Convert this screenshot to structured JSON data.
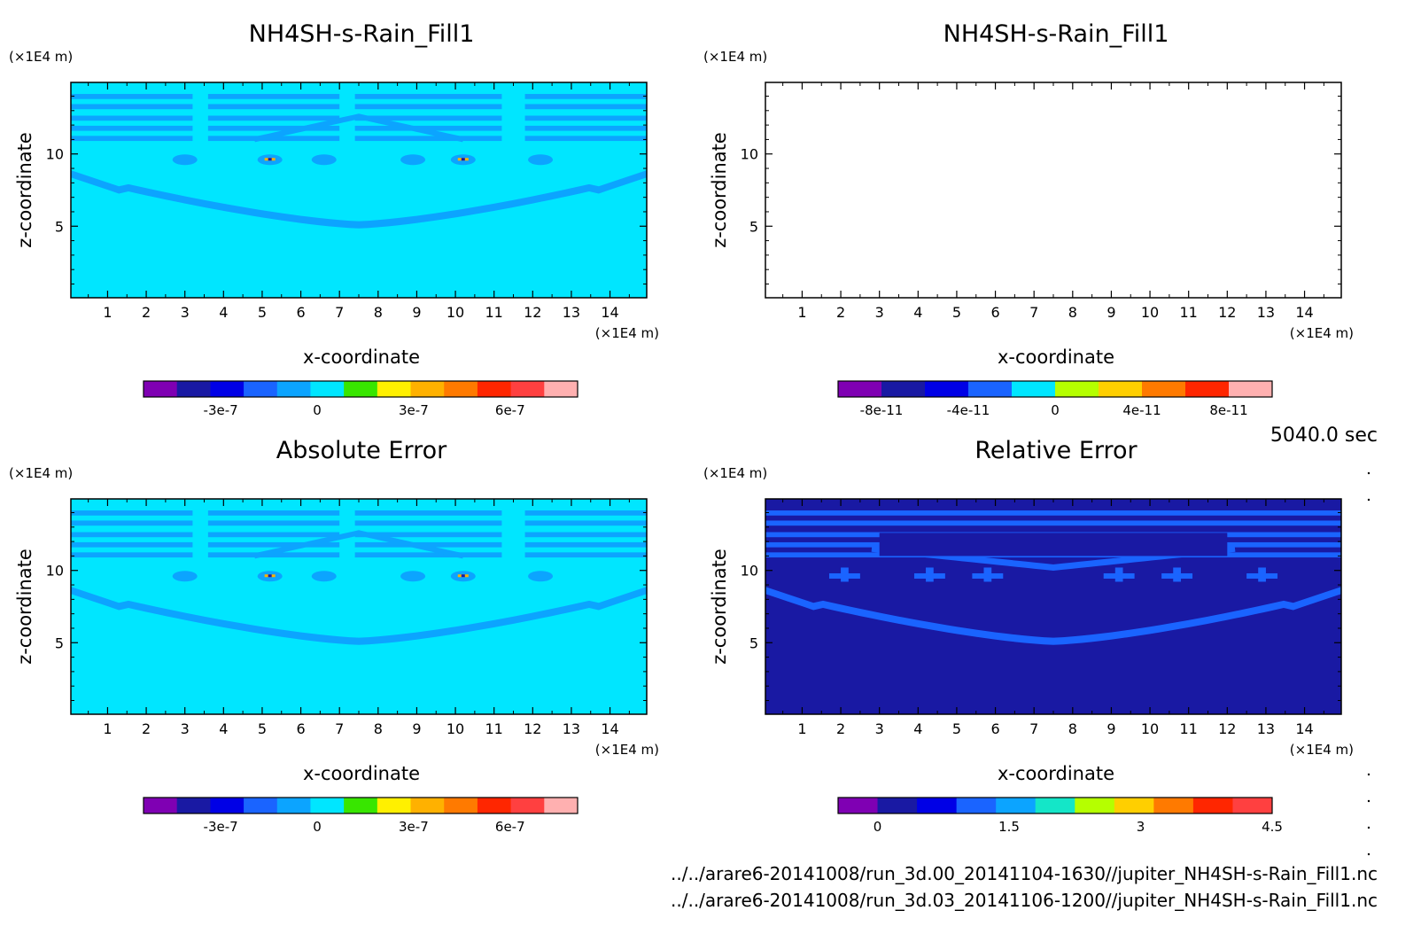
{
  "time_label": "5040.0 sec",
  "footer": {
    "file1": "../../arare6-20141008/run_3d.00_20141104-1630//jupiter_NH4SH-s-Rain_Fill1.nc",
    "file2": "../../arare6-20141008/run_3d.03_20141106-1200//jupiter_NH4SH-s-Rain_Fill1.nc"
  },
  "chart_data": [
    {
      "type": "heatmap",
      "title": "NH4SH-s-Rain_Fill1",
      "xlabel": "x-coordinate",
      "ylabel": "z-coordinate",
      "x_unit": "(×1E4 m)",
      "y_unit": "(×1E4 m)",
      "x_ticks": [
        1,
        2,
        3,
        4,
        5,
        6,
        7,
        8,
        9,
        10,
        11,
        12,
        13,
        14
      ],
      "y_ticks": [
        5,
        10
      ],
      "xlim": [
        0.05,
        14.95
      ],
      "ylim": [
        0.05,
        14.95
      ],
      "dominant_value": 0,
      "features": "banded structure near z=11-14, lens-shaped layer from z~7.5 at edges down to z~5 at x~7.5, small cells near x~5 and x~10 at z~9.5",
      "colorbar": {
        "tick_labels": [
          "-3e-7",
          "0",
          "3e-7",
          "6e-7"
        ],
        "tick_values": [
          -3e-07,
          0,
          3e-07,
          6e-07
        ],
        "range": [
          -5.4e-07,
          8.1e-07
        ],
        "colors": [
          "#7f00b3",
          "#1919a3",
          "#0000e6",
          "#1a64ff",
          "#0ca4ff",
          "#00e6ff",
          "#38e600",
          "#fff000",
          "#ffb100",
          "#ff7a00",
          "#ff2600",
          "#ff4040",
          "#ffb0b0"
        ]
      }
    },
    {
      "type": "heatmap",
      "title": "NH4SH-s-Rain_Fill1",
      "xlabel": "x-coordinate",
      "ylabel": "z-coordinate",
      "x_unit": "(×1E4 m)",
      "y_unit": "(×1E4 m)",
      "x_ticks": [
        1,
        2,
        3,
        4,
        5,
        6,
        7,
        8,
        9,
        10,
        11,
        12,
        13,
        14
      ],
      "y_ticks": [
        5,
        10
      ],
      "xlim": [
        0.05,
        14.95
      ],
      "ylim": [
        0.05,
        14.95
      ],
      "dominant_value": null,
      "features": "empty field (no shading)",
      "colorbar": {
        "tick_labels": [
          "-8e-11",
          "-4e-11",
          "0",
          "4e-11",
          "8e-11"
        ],
        "tick_values": [
          -8e-11,
          -4e-11,
          0,
          4e-11,
          8e-11
        ],
        "range": [
          -1e-10,
          1e-10
        ],
        "colors": [
          "#7f00b3",
          "#1919a3",
          "#0000e6",
          "#1a64ff",
          "#00e6ff",
          "#b5ff00",
          "#ffcf00",
          "#ff7a00",
          "#ff2600",
          "#ffb0b0"
        ]
      }
    },
    {
      "type": "heatmap",
      "title": "Absolute Error",
      "xlabel": "x-coordinate",
      "ylabel": "z-coordinate",
      "x_unit": "(×1E4 m)",
      "y_unit": "(×1E4 m)",
      "x_ticks": [
        1,
        2,
        3,
        4,
        5,
        6,
        7,
        8,
        9,
        10,
        11,
        12,
        13,
        14
      ],
      "y_ticks": [
        5,
        10
      ],
      "xlim": [
        0.05,
        14.95
      ],
      "ylim": [
        0.05,
        14.95
      ],
      "dominant_value": 0,
      "features": "identical pattern to the first panel",
      "colorbar": {
        "tick_labels": [
          "-3e-7",
          "0",
          "3e-7",
          "6e-7"
        ],
        "tick_values": [
          -3e-07,
          0,
          3e-07,
          6e-07
        ],
        "range": [
          -5.4e-07,
          8.1e-07
        ],
        "colors": [
          "#7f00b3",
          "#1919a3",
          "#0000e6",
          "#1a64ff",
          "#0ca4ff",
          "#00e6ff",
          "#38e600",
          "#fff000",
          "#ffb100",
          "#ff7a00",
          "#ff2600",
          "#ff4040",
          "#ffb0b0"
        ]
      }
    },
    {
      "type": "heatmap",
      "title": "Relative Error",
      "xlabel": "x-coordinate",
      "ylabel": "z-coordinate",
      "x_unit": "(×1E4 m)",
      "y_unit": "(×1E4 m)",
      "x_ticks": [
        1,
        2,
        3,
        4,
        5,
        6,
        7,
        8,
        9,
        10,
        11,
        12,
        13,
        14
      ],
      "y_ticks": [
        5,
        10
      ],
      "xlim": [
        0.05,
        14.95
      ],
      "ylim": [
        0.05,
        14.95
      ],
      "dominant_value": 0,
      "features": "banded values near z=11-14, lens-shaped layer from z~7.5 at edges down to z~5 at x~7.5",
      "colorbar": {
        "tick_labels": [
          "0",
          "1.5",
          "3",
          "4.5"
        ],
        "tick_values": [
          0,
          1.5,
          3,
          4.5
        ],
        "range": [
          -0.45,
          4.5
        ],
        "colors": [
          "#7f00b3",
          "#1919a3",
          "#0000e6",
          "#1a64ff",
          "#0ca4ff",
          "#14e6c8",
          "#b5ff00",
          "#ffcf00",
          "#ff7a00",
          "#ff2600",
          "#ff4040"
        ]
      }
    }
  ],
  "colors": {
    "background_low": "#00e6ff",
    "band_mid": "#1a8cff",
    "relative_background": "#0a19e6",
    "relative_band": "#1a8cff"
  }
}
